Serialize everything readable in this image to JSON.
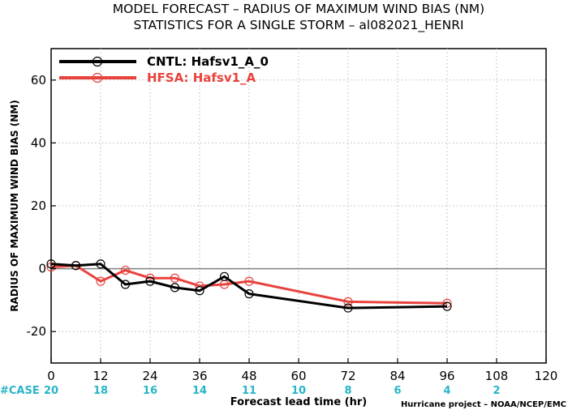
{
  "chart_data": {
    "type": "line",
    "title": "MODEL FORECAST – RADIUS OF MAXIMUM WIND BIAS (NM)",
    "subtitle": "STATISTICS FOR A SINGLE STORM – al082021_HENRI",
    "xlabel": "Forecast lead time (hr)",
    "ylabel": "RADIUS OF MAXIMUM WIND BIAS (NM)",
    "xlim": [
      0,
      120
    ],
    "ylim": [
      -30,
      70
    ],
    "xticks": [
      0,
      12,
      24,
      36,
      48,
      60,
      72,
      84,
      96,
      108,
      120
    ],
    "yticks": [
      -20,
      0,
      20,
      40,
      60
    ],
    "grid": true,
    "legend_position": "top-left",
    "series": [
      {
        "name": "CNTL: Hafsv1_A_0",
        "color": "#000000",
        "x": [
          0,
          6,
          12,
          18,
          24,
          30,
          36,
          42,
          48,
          72,
          96
        ],
        "y": [
          1.5,
          1.0,
          1.5,
          -5.0,
          -4.0,
          -6.0,
          -7.0,
          -2.5,
          -8.0,
          -12.5,
          -12.0
        ]
      },
      {
        "name": "HFSA: Hafsv1_A",
        "color": "#e8423e",
        "x": [
          0,
          6,
          12,
          18,
          24,
          30,
          36,
          42,
          48,
          72,
          96
        ],
        "y": [
          0.5,
          1.0,
          -4.0,
          -0.5,
          -3.0,
          -3.0,
          -5.5,
          -5.0,
          -4.0,
          -10.5,
          -11.0
        ]
      }
    ],
    "case_counts": {
      "label": "#CASE",
      "x": [
        0,
        12,
        24,
        36,
        48,
        60,
        72,
        84,
        96,
        108
      ],
      "values": [
        "20",
        "18",
        "16",
        "14",
        "11",
        "10",
        "8",
        "6",
        "4",
        "2"
      ],
      "color": "#27b5c6"
    },
    "credit": "Hurricane project – NOAA/NCEP/EMC"
  }
}
